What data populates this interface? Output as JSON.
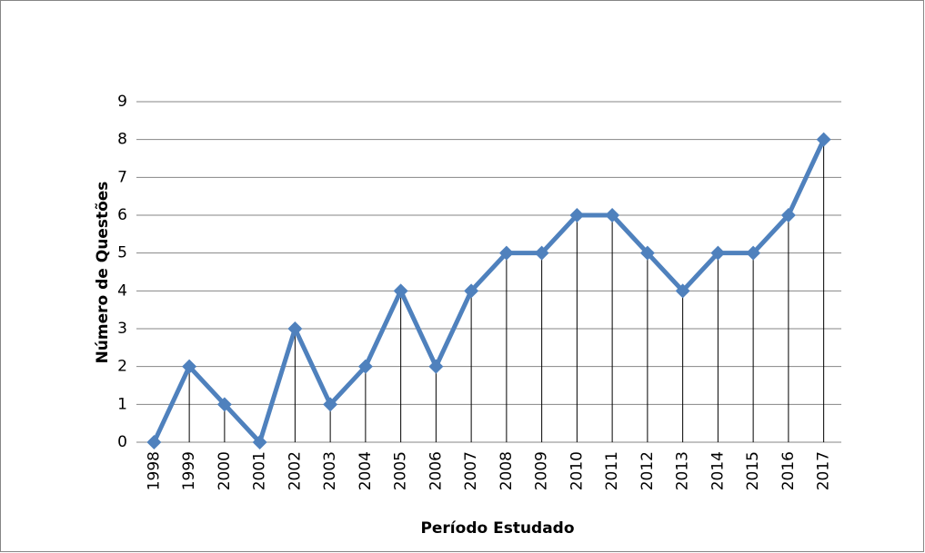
{
  "chart_data": {
    "type": "line",
    "x_label": "Período Estudado",
    "y_label": "Número de Questões",
    "categories": [
      "1998",
      "1999",
      "2000",
      "2001",
      "2002",
      "2003",
      "2004",
      "2005",
      "2006",
      "2007",
      "2008",
      "2009",
      "2010",
      "2011",
      "2012",
      "2013",
      "2014",
      "2015",
      "2016",
      "2017"
    ],
    "series": [
      {
        "name": "Número de Questões",
        "color": "#4f81bd",
        "values": [
          0,
          2,
          1,
          0,
          3,
          1,
          2,
          4,
          2,
          4,
          5,
          5,
          6,
          6,
          5,
          4,
          5,
          5,
          6,
          8
        ]
      }
    ],
    "ylim": [
      0,
      9
    ],
    "yticks": [
      0,
      1,
      2,
      3,
      4,
      5,
      6,
      7,
      8,
      9
    ],
    "grid": true,
    "drop_lines": true
  }
}
